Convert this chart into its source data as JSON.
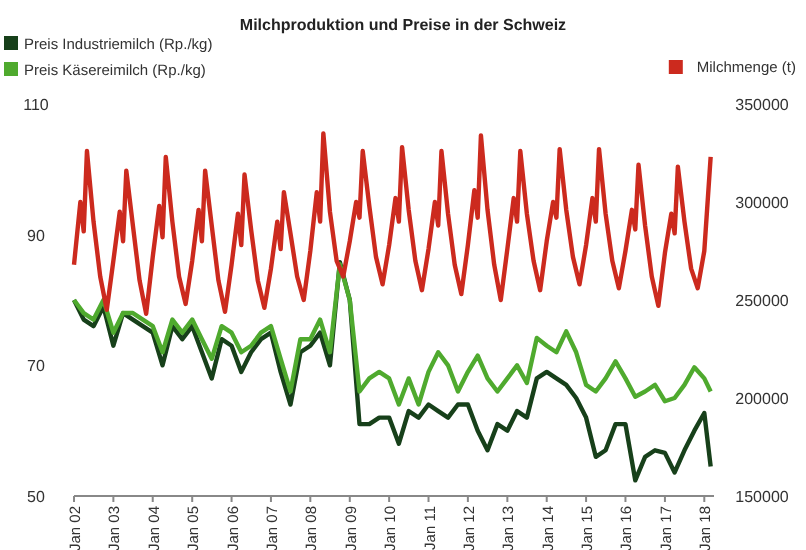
{
  "chart_data": {
    "type": "line",
    "title": "Milchproduktion und Preise in der Schweiz",
    "legend": "top",
    "grid": false,
    "xlim": [
      "2002-01",
      "2018-04"
    ],
    "xticks": [
      {
        "value": "2002-01",
        "label": "Jan 02"
      },
      {
        "value": "2003-01",
        "label": "Jan 03"
      },
      {
        "value": "2004-01",
        "label": "Jan 04"
      },
      {
        "value": "2005-01",
        "label": "Jan 05"
      },
      {
        "value": "2006-01",
        "label": "Jan 06"
      },
      {
        "value": "2007-01",
        "label": "Jan 07"
      },
      {
        "value": "2008-01",
        "label": "Jan 08"
      },
      {
        "value": "2009-01",
        "label": "Jan 09"
      },
      {
        "value": "2010-01",
        "label": "Jan 10"
      },
      {
        "value": "2011-01",
        "label": "Jan 11"
      },
      {
        "value": "2012-01",
        "label": "Jan 12"
      },
      {
        "value": "2013-01",
        "label": "Jan 13"
      },
      {
        "value": "2014-01",
        "label": "Jan 14"
      },
      {
        "value": "2015-01",
        "label": "Jan 15"
      },
      {
        "value": "2016-01",
        "label": "Jan 16"
      },
      {
        "value": "2017-01",
        "label": "Jan 17"
      },
      {
        "value": "2018-01",
        "label": "Jan 18"
      }
    ],
    "ylim": [
      50,
      110
    ],
    "yticks": [
      50,
      70,
      90,
      110
    ],
    "y2lim": [
      150000,
      350000
    ],
    "y2ticks": [
      150000,
      200000,
      250000,
      300000,
      350000
    ],
    "series": [
      {
        "name": "Preis Industriemilch (Rp./kg)",
        "color": "#17401a",
        "x": [
          "2002-01",
          "2002-04",
          "2002-07",
          "2002-10",
          "2003-01",
          "2003-04",
          "2003-07",
          "2003-10",
          "2004-01",
          "2004-04",
          "2004-07",
          "2004-10",
          "2005-01",
          "2005-04",
          "2005-07",
          "2005-10",
          "2006-01",
          "2006-04",
          "2006-07",
          "2006-10",
          "2007-01",
          "2007-04",
          "2007-07",
          "2007-10",
          "2008-01",
          "2008-04",
          "2008-07",
          "2008-10",
          "2009-01",
          "2009-04",
          "2009-07",
          "2009-10",
          "2010-01",
          "2010-04",
          "2010-07",
          "2010-10",
          "2011-01",
          "2011-04",
          "2011-07",
          "2011-10",
          "2012-01",
          "2012-04",
          "2012-07",
          "2012-10",
          "2013-01",
          "2013-04",
          "2013-07",
          "2013-10",
          "2014-01",
          "2014-04",
          "2014-07",
          "2014-10",
          "2015-01",
          "2015-04",
          "2015-07",
          "2015-10",
          "2016-01",
          "2016-04",
          "2016-07",
          "2016-10",
          "2017-01",
          "2017-04",
          "2017-07",
          "2017-10",
          "2018-01",
          "2018-03"
        ],
        "values": [
          80,
          77,
          76,
          79,
          73,
          78,
          77,
          76,
          75,
          70,
          76,
          74,
          76,
          72,
          68,
          74,
          73,
          69,
          72,
          74,
          75,
          69,
          64,
          72,
          73,
          75,
          70,
          85.8,
          80,
          61,
          61,
          62,
          62,
          58,
          63,
          62,
          64,
          63,
          62,
          64,
          64,
          60,
          57,
          61,
          60,
          63,
          62,
          68,
          69,
          68,
          67,
          65,
          62,
          56,
          57,
          61,
          61,
          52.4,
          56,
          57,
          56.6,
          53.6,
          57,
          60,
          62.7,
          54.5
        ]
      },
      {
        "name": "Preis Käsereimilch (Rp./kg)",
        "color": "#4faa2e",
        "x": [
          "2002-01",
          "2002-04",
          "2002-07",
          "2002-10",
          "2003-01",
          "2003-04",
          "2003-07",
          "2003-10",
          "2004-01",
          "2004-04",
          "2004-07",
          "2004-10",
          "2005-01",
          "2005-04",
          "2005-07",
          "2005-10",
          "2006-01",
          "2006-04",
          "2006-07",
          "2006-10",
          "2007-01",
          "2007-04",
          "2007-07",
          "2007-10",
          "2008-01",
          "2008-04",
          "2008-07",
          "2008-10",
          "2009-01",
          "2009-04",
          "2009-07",
          "2009-10",
          "2010-01",
          "2010-04",
          "2010-07",
          "2010-10",
          "2011-01",
          "2011-04",
          "2011-07",
          "2011-10",
          "2012-01",
          "2012-04",
          "2012-07",
          "2012-10",
          "2013-01",
          "2013-04",
          "2013-07",
          "2013-10",
          "2014-01",
          "2014-04",
          "2014-07",
          "2014-10",
          "2015-01",
          "2015-04",
          "2015-07",
          "2015-10",
          "2016-01",
          "2016-04",
          "2016-07",
          "2016-10",
          "2017-01",
          "2017-04",
          "2017-07",
          "2017-10",
          "2018-01",
          "2018-03"
        ],
        "values": [
          80,
          78,
          77,
          80,
          75,
          78,
          78,
          77,
          76,
          72,
          77,
          75,
          77,
          74,
          71,
          76,
          75,
          72,
          73,
          75,
          76,
          71,
          66,
          74,
          74,
          77,
          72,
          85.5,
          80,
          66,
          68,
          69,
          68,
          64,
          68,
          64,
          69,
          72,
          70,
          66,
          69,
          71.5,
          68,
          66,
          68,
          70,
          67.3,
          74.2,
          73,
          72,
          75.2,
          72,
          67,
          66,
          68,
          70.6,
          68,
          65.2,
          66,
          67,
          64.5,
          65,
          67,
          69.7,
          68,
          66
        ]
      },
      {
        "name": "Milchmenge (t)",
        "color": "#cc2a1e",
        "axis": "y2",
        "x": [
          "2002-01",
          "2002-03",
          "2002-04",
          "2002-05",
          "2002-07",
          "2002-09",
          "2002-11",
          "2003-01",
          "2003-03",
          "2003-04",
          "2003-05",
          "2003-07",
          "2003-09",
          "2003-11",
          "2004-01",
          "2004-03",
          "2004-04",
          "2004-05",
          "2004-07",
          "2004-09",
          "2004-11",
          "2005-01",
          "2005-03",
          "2005-04",
          "2005-05",
          "2005-07",
          "2005-09",
          "2005-11",
          "2006-01",
          "2006-03",
          "2006-04",
          "2006-05",
          "2006-07",
          "2006-09",
          "2006-11",
          "2007-01",
          "2007-03",
          "2007-04",
          "2007-05",
          "2007-07",
          "2007-09",
          "2007-11",
          "2008-01",
          "2008-03",
          "2008-04",
          "2008-05",
          "2008-07",
          "2008-09",
          "2008-11",
          "2009-01",
          "2009-03",
          "2009-04",
          "2009-05",
          "2009-07",
          "2009-09",
          "2009-11",
          "2010-01",
          "2010-03",
          "2010-04",
          "2010-05",
          "2010-07",
          "2010-09",
          "2010-11",
          "2011-01",
          "2011-03",
          "2011-04",
          "2011-05",
          "2011-07",
          "2011-09",
          "2011-11",
          "2012-01",
          "2012-03",
          "2012-04",
          "2012-05",
          "2012-07",
          "2012-09",
          "2012-11",
          "2013-01",
          "2013-03",
          "2013-04",
          "2013-05",
          "2013-07",
          "2013-09",
          "2013-11",
          "2014-01",
          "2014-03",
          "2014-04",
          "2014-05",
          "2014-07",
          "2014-09",
          "2014-11",
          "2015-01",
          "2015-03",
          "2015-04",
          "2015-05",
          "2015-07",
          "2015-09",
          "2015-11",
          "2016-01",
          "2016-03",
          "2016-04",
          "2016-05",
          "2016-07",
          "2016-09",
          "2016-11",
          "2017-01",
          "2017-03",
          "2017-04",
          "2017-05",
          "2017-07",
          "2017-09",
          "2017-11",
          "2018-01",
          "2018-03"
        ],
        "values": [
          268000,
          300000,
          285000,
          326000,
          290000,
          262000,
          245000,
          270000,
          295000,
          280000,
          316000,
          288000,
          260000,
          243000,
          272000,
          298000,
          282000,
          323000,
          290000,
          262000,
          248000,
          270000,
          296000,
          280000,
          316000,
          288000,
          260000,
          244000,
          268000,
          294000,
          278000,
          314000,
          286000,
          260000,
          246000,
          266000,
          290000,
          276000,
          305000,
          284000,
          262000,
          250000,
          275000,
          305000,
          290000,
          335000,
          295000,
          270000,
          262000,
          280000,
          300000,
          292000,
          326000,
          298000,
          272000,
          258000,
          278000,
          302000,
          290000,
          328000,
          296000,
          270000,
          255000,
          276000,
          300000,
          288000,
          326000,
          294000,
          268000,
          253000,
          278000,
          306000,
          292000,
          334000,
          296000,
          268000,
          250000,
          276000,
          302000,
          290000,
          326000,
          294000,
          270000,
          255000,
          280000,
          300000,
          292000,
          327000,
          296000,
          272000,
          258000,
          278000,
          302000,
          290000,
          327000,
          294000,
          270000,
          256000,
          275000,
          296000,
          286000,
          319000,
          288000,
          262000,
          247000,
          274000,
          294000,
          284000,
          318000,
          290000,
          266000,
          256000,
          275000,
          323000
        ]
      }
    ]
  }
}
